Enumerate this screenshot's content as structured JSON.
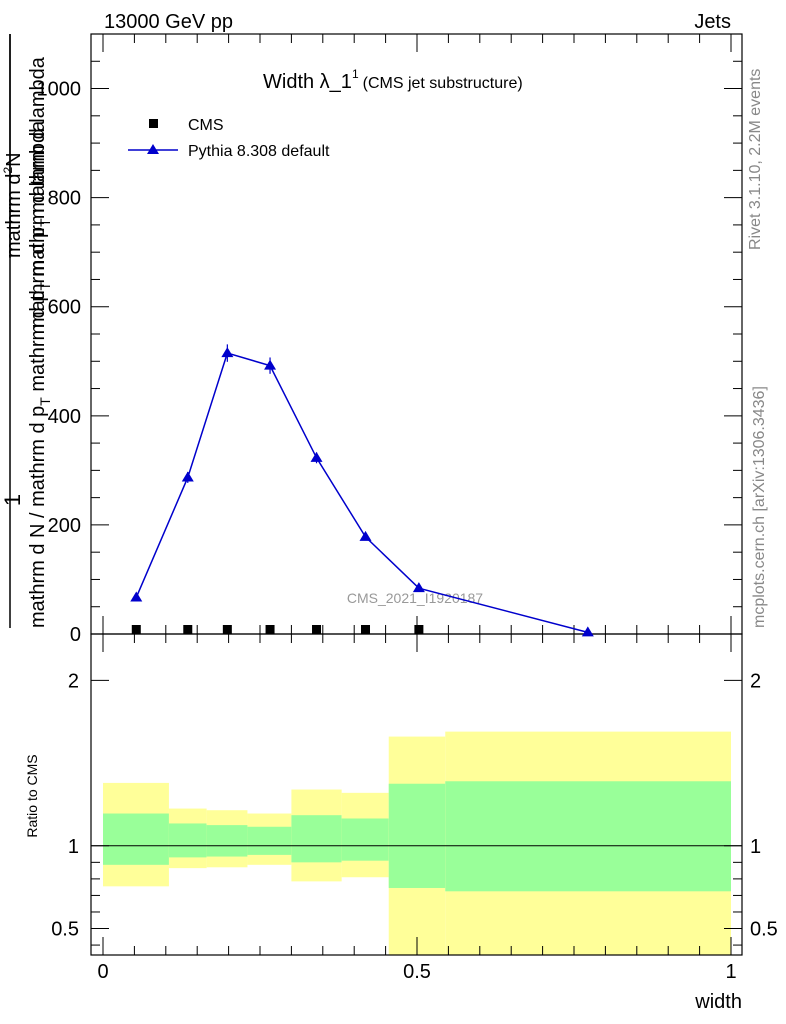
{
  "header": {
    "left": "13000 GeV pp",
    "right": "Jets"
  },
  "side": {
    "rivet": "Rivet 3.1.10,  2.2M events",
    "mcplots": "mcplots.cern.ch [arXiv:1306.3436]"
  },
  "title": {
    "main": "Width λ_1",
    "sup": "1",
    "sub": "(CMS jet substructure)"
  },
  "ylabel_top": {
    "num_left": "1",
    "den_left": "mathrm d N / mathrm d p",
    "den_left_sub": "T",
    "den_left_tail": " mathrm d p",
    "den_left_tail_sub": "T",
    "den_left_tail2": " mathrm d lambda",
    "num_right": "mathrm d",
    "num_right_sup": "2",
    "num_right_tail": "N",
    "den_right": "mathrm d p",
    "den_right_sub": "T",
    "den_right_tail": " mathrm d lambda"
  },
  "ylabel_ratio": "Ratio to CMS",
  "xlabel": "width",
  "watermark": "CMS_2021_I1920187",
  "legend": {
    "data": "CMS",
    "mc": "Pythia 8.308 default"
  },
  "colors": {
    "mc": "#0000cc",
    "data": "#000000",
    "band_outer": "#ffff99",
    "band_inner": "#99ff99"
  },
  "chart_data": [
    {
      "type": "scatter",
      "panel": "main",
      "xlim": [
        -0.02,
        1.0
      ],
      "ylim": [
        0,
        1100
      ],
      "y_ticks": [
        0,
        200,
        400,
        600,
        800,
        1000
      ],
      "y_tick_labels": [
        "0",
        "200",
        "400",
        "600",
        "800",
        "1000"
      ],
      "series": [
        {
          "name": "CMS",
          "x": [
            0.053,
            0.135,
            0.198,
            0.266,
            0.34,
            0.418,
            0.503
          ],
          "y": [
            0.5,
            1.0,
            1.5,
            1.5,
            1.0,
            0.5,
            0.5
          ]
        },
        {
          "name": "Pythia 8.308 default",
          "x": [
            0.053,
            0.135,
            0.198,
            0.266,
            0.34,
            0.418,
            0.503,
            0.772
          ],
          "y": [
            67,
            287,
            515,
            492,
            323,
            178,
            84,
            3
          ],
          "yerr": [
            4,
            10,
            16,
            15,
            10,
            6,
            4,
            1
          ]
        }
      ]
    },
    {
      "type": "area",
      "panel": "ratio",
      "ylim": [
        0.34,
        2.28
      ],
      "y_ticks": [
        0.5,
        1,
        2
      ],
      "y_tick_labels": [
        "0.5",
        "1",
        "2"
      ],
      "x_ticks": [
        0,
        0.5,
        1
      ],
      "x_tick_labels": [
        "0",
        "0.5",
        "1"
      ],
      "bins": [
        {
          "lo": 0.0,
          "hi": 0.105,
          "outer": [
            0.755,
            1.38
          ],
          "inner": [
            0.885,
            1.195
          ]
        },
        {
          "lo": 0.105,
          "hi": 0.165,
          "outer": [
            0.865,
            1.225
          ],
          "inner": [
            0.93,
            1.135
          ]
        },
        {
          "lo": 0.165,
          "hi": 0.23,
          "outer": [
            0.87,
            1.215
          ],
          "inner": [
            0.935,
            1.125
          ]
        },
        {
          "lo": 0.23,
          "hi": 0.3,
          "outer": [
            0.885,
            1.195
          ],
          "inner": [
            0.945,
            1.115
          ]
        },
        {
          "lo": 0.3,
          "hi": 0.38,
          "outer": [
            0.785,
            1.34
          ],
          "inner": [
            0.9,
            1.185
          ]
        },
        {
          "lo": 0.38,
          "hi": 0.455,
          "outer": [
            0.81,
            1.32
          ],
          "inner": [
            0.91,
            1.165
          ]
        },
        {
          "lo": 0.455,
          "hi": 0.545,
          "outer": [
            0.34,
            1.66
          ],
          "inner": [
            0.745,
            1.375
          ]
        },
        {
          "lo": 0.545,
          "hi": 1.0,
          "outer": [
            0.34,
            1.69
          ],
          "inner": [
            0.725,
            1.39
          ]
        }
      ],
      "reference": 1.0
    }
  ]
}
